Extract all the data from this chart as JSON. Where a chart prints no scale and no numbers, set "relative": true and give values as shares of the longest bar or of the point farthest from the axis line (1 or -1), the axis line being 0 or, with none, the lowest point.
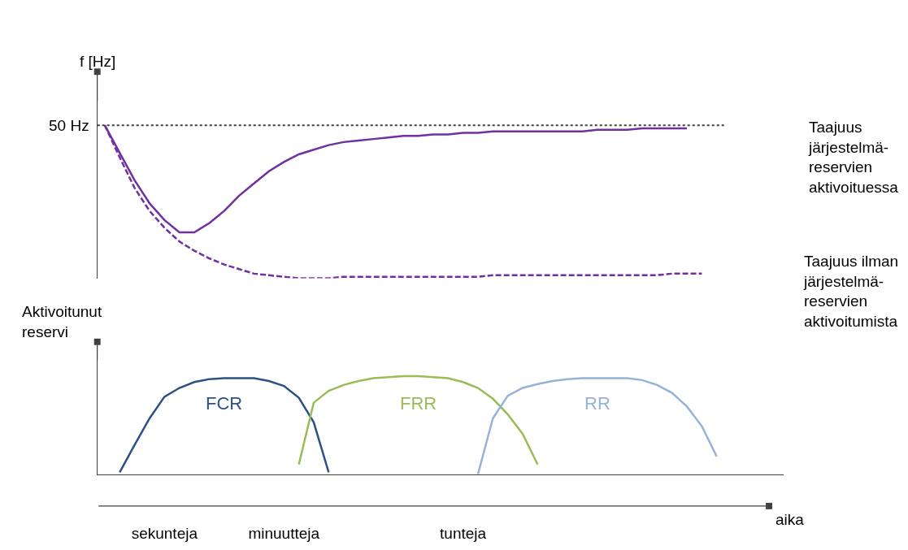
{
  "chart_data": [
    {
      "type": "line",
      "relative": true,
      "ylabel": "f [Hz]",
      "tick_labels": false,
      "categories": [
        null,
        null,
        null,
        null,
        null,
        null,
        null,
        null,
        null,
        null,
        null,
        null,
        null,
        null,
        null,
        null,
        null,
        null,
        null,
        null,
        null,
        null,
        null,
        null,
        null,
        null,
        null,
        null,
        null,
        null,
        null,
        null,
        null,
        null,
        null,
        null,
        null,
        null,
        null,
        null,
        null,
        null,
        null,
        null
      ],
      "series": [
        {
          "name": "Taajuus järjestelmä-reservien aktivoituessa",
          "color": "#7030a0",
          "line_style": "solid",
          "values": [
            1.0,
            0.82,
            0.64,
            0.49,
            0.38,
            0.3,
            0.3,
            0.36,
            0.44,
            0.54,
            0.62,
            0.7,
            0.76,
            0.81,
            0.84,
            0.87,
            0.89,
            0.9,
            0.91,
            0.92,
            0.93,
            0.93,
            0.94,
            0.94,
            0.95,
            0.95,
            0.96,
            0.96,
            0.96,
            0.96,
            0.96,
            0.96,
            0.96,
            0.97,
            0.97,
            0.97,
            0.98,
            0.98,
            0.98,
            0.98,
            null,
            null,
            null,
            null
          ]
        },
        {
          "name": "Taajuus ilman järjestelmä-reservien aktivoitumista",
          "color": "#7030a0",
          "line_style": "dashed",
          "values": [
            1.0,
            0.79,
            0.59,
            0.44,
            0.33,
            0.24,
            0.18,
            0.13,
            0.09,
            0.06,
            0.03,
            0.02,
            0.01,
            0,
            0,
            0,
            0.01,
            0.01,
            0.01,
            0.01,
            0.01,
            0.01,
            0.01,
            0.01,
            0.01,
            0.01,
            0.02,
            0.02,
            0.02,
            0.02,
            0.02,
            0.02,
            0.02,
            0.02,
            0.02,
            0.02,
            0.02,
            0.02,
            0.03,
            0.03,
            0.03,
            null,
            null,
            null
          ]
        }
      ],
      "ref_lines": [
        {
          "axis": "y",
          "value": 1,
          "label": "50 Hz",
          "color": "#404040",
          "line_style": "dotted"
        }
      ]
    },
    {
      "type": "line",
      "relative": true,
      "ylabel": "Aktivoitunut reservi",
      "xlabel": "aika",
      "tick_labels": "x",
      "categories": [
        null,
        null,
        null,
        null,
        "sekunteja",
        null,
        null,
        null,
        null,
        null,
        null,
        null,
        "minuutteja",
        null,
        null,
        null,
        null,
        null,
        null,
        null,
        null,
        null,
        null,
        null,
        "tunteja",
        null,
        null,
        null,
        null,
        null,
        null,
        null,
        null,
        null,
        null,
        null,
        null,
        null,
        null,
        null,
        null,
        null,
        null,
        null
      ],
      "series": [
        {
          "name": "FCR",
          "color": "#2e5185",
          "values": [
            null,
            0.02,
            0.3,
            0.57,
            0.79,
            0.88,
            0.94,
            0.97,
            0.98,
            0.98,
            0.98,
            0.95,
            0.9,
            0.78,
            0.53,
            0.02,
            null,
            null,
            null,
            null,
            null,
            null,
            null,
            null,
            null,
            null,
            null,
            null,
            null,
            null,
            null,
            null,
            null,
            null,
            null,
            null,
            null,
            null,
            null,
            null,
            null,
            null,
            null,
            null
          ]
        },
        {
          "name": "FRR",
          "color": "#9bbb59",
          "values": [
            null,
            null,
            null,
            null,
            null,
            null,
            null,
            null,
            null,
            null,
            null,
            null,
            null,
            0.1,
            0.73,
            0.85,
            0.91,
            0.95,
            0.98,
            0.99,
            1.0,
            1.0,
            0.99,
            0.98,
            0.94,
            0.88,
            0.77,
            0.61,
            0.41,
            0.1,
            null,
            null,
            null,
            null,
            null,
            null,
            null,
            null,
            null,
            null,
            null,
            null,
            null,
            null
          ]
        },
        {
          "name": "RR",
          "color": "#95b3d7",
          "values": [
            null,
            null,
            null,
            null,
            null,
            null,
            null,
            null,
            null,
            null,
            null,
            null,
            null,
            null,
            null,
            null,
            null,
            null,
            null,
            null,
            null,
            null,
            null,
            null,
            null,
            0,
            0.57,
            0.8,
            0.88,
            0.92,
            0.95,
            0.97,
            0.98,
            0.98,
            0.98,
            0.98,
            0.96,
            0.91,
            0.83,
            0.69,
            0.49,
            0.18,
            null,
            null
          ]
        }
      ]
    }
  ]
}
